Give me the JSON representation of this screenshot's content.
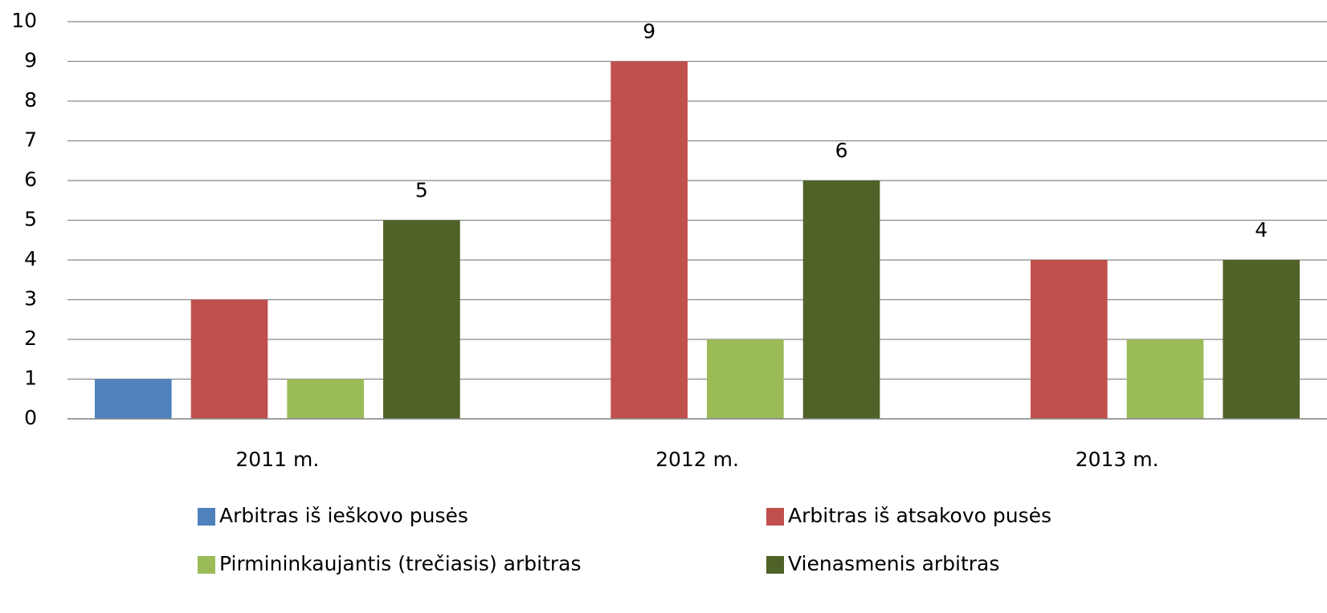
{
  "chart_data": {
    "type": "bar",
    "categories": [
      "2011 m.",
      "2012 m.",
      "2013 m."
    ],
    "series": [
      {
        "name": "Arbitras iš ieškovo pusės",
        "color": "#4f81bd",
        "values": [
          1,
          0,
          0
        ]
      },
      {
        "name": "Arbitras iš atsakovo pusės",
        "color": "#c0504d",
        "values": [
          3,
          9,
          4
        ],
        "value_labels": [
          null,
          "9",
          null
        ]
      },
      {
        "name": "Pirmininkaujantis (trečiasis) arbitras",
        "color": "#9bbb59",
        "values": [
          1,
          2,
          2
        ]
      },
      {
        "name": "Vienasmenis arbitras",
        "color": "#4f6228",
        "values": [
          5,
          6,
          4
        ],
        "value_labels": [
          "5",
          "6",
          "4"
        ]
      }
    ],
    "ylim": [
      0,
      10
    ],
    "yticks": [
      0,
      1,
      2,
      3,
      4,
      5,
      6,
      7,
      8,
      9,
      10
    ],
    "grid": true,
    "legend": "bottom"
  }
}
